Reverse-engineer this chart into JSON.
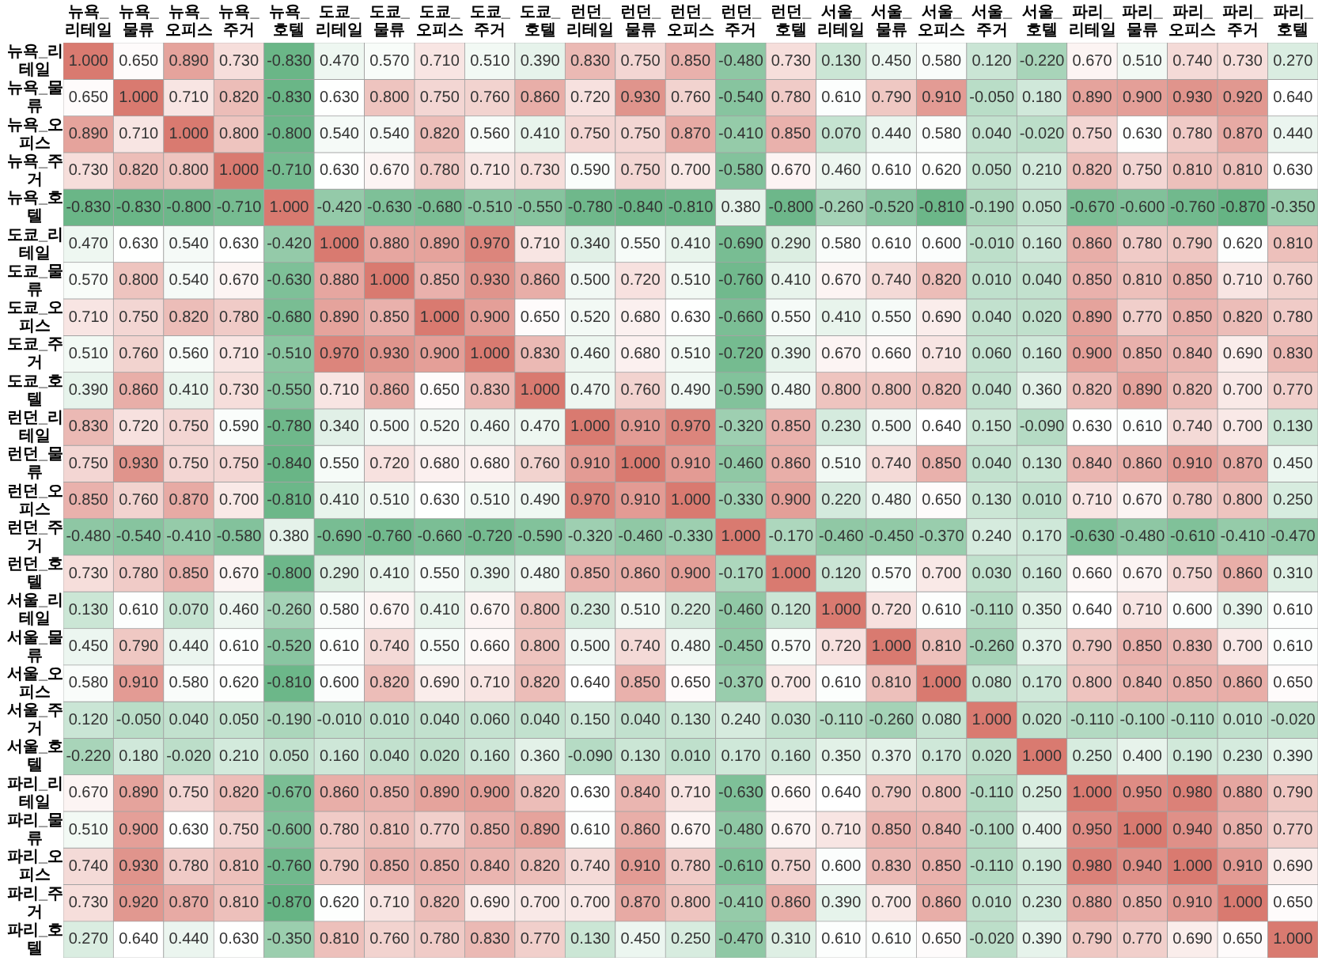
{
  "chart_data": {
    "type": "heatmap",
    "categories": [
      "뉴욕_리테일",
      "뉴욕_물류",
      "뉴욕_오피스",
      "뉴욕_주거",
      "뉴욕_호텔",
      "도쿄_리테일",
      "도쿄_물류",
      "도쿄_오피스",
      "도쿄_주거",
      "도쿄_호텔",
      "런던_리테일",
      "런던_물류",
      "런던_오피스",
      "런던_주거",
      "런던_호텔",
      "서울_리테일",
      "서울_물류",
      "서울_오피스",
      "서울_주거",
      "서울_호텔",
      "파리_리테일",
      "파리_물류",
      "파리_오피스",
      "파리_주거",
      "파리_호텔"
    ],
    "y_categories": [
      "뉴욕_리테일",
      "뉴욕_물류",
      "뉴욕_오피스",
      "뉴욕_주거",
      "뉴욕_호텔",
      "도쿄_리테일",
      "도쿄_물류",
      "도쿄_오피스",
      "도쿄_주거",
      "도쿄_호텔",
      "런던_리테일",
      "런던_물류",
      "런던_오피스",
      "런던_주거",
      "런던_호텔",
      "서울_리테일",
      "서울_물류",
      "서울_오피스",
      "서울_주거",
      "서울_호텔",
      "파리_리테일",
      "파리_물류",
      "파리_오피스",
      "파리_주거",
      "파리_호텔"
    ],
    "cells": [
      [
        1,
        0.65,
        0.89,
        0.73,
        -0.83,
        0.47,
        0.57,
        0.71,
        0.51,
        0.39,
        0.83,
        0.75,
        0.85,
        -0.48,
        0.73,
        0.13,
        0.45,
        0.58,
        0.12,
        -0.22,
        0.67,
        0.51,
        0.74,
        0.73,
        0.27
      ],
      [
        0.65,
        1,
        0.71,
        0.82,
        -0.83,
        0.63,
        0.8,
        0.75,
        0.76,
        0.86,
        0.72,
        0.93,
        0.76,
        -0.54,
        0.78,
        0.61,
        0.79,
        0.91,
        -0.05,
        0.18,
        0.89,
        0.9,
        0.93,
        0.92,
        0.64
      ],
      [
        0.89,
        0.71,
        1,
        0.8,
        -0.8,
        0.54,
        0.54,
        0.82,
        0.56,
        0.41,
        0.75,
        0.75,
        0.87,
        -0.41,
        0.85,
        0.07,
        0.44,
        0.58,
        0.04,
        -0.02,
        0.75,
        0.63,
        0.78,
        0.87,
        0.44
      ],
      [
        0.73,
        0.82,
        0.8,
        1,
        -0.71,
        0.63,
        0.67,
        0.78,
        0.71,
        0.73,
        0.59,
        0.75,
        0.7,
        -0.58,
        0.67,
        0.46,
        0.61,
        0.62,
        0.05,
        0.21,
        0.82,
        0.75,
        0.81,
        0.81,
        0.63
      ],
      [
        -0.83,
        -0.83,
        -0.8,
        -0.71,
        1,
        -0.42,
        -0.63,
        -0.68,
        -0.51,
        -0.55,
        -0.78,
        -0.84,
        -0.81,
        0.38,
        -0.8,
        -0.26,
        -0.52,
        -0.81,
        -0.19,
        0.05,
        -0.67,
        -0.6,
        -0.76,
        -0.87,
        -0.35
      ],
      [
        0.47,
        0.63,
        0.54,
        0.63,
        -0.42,
        1,
        0.88,
        0.89,
        0.97,
        0.71,
        0.34,
        0.55,
        0.41,
        -0.69,
        0.29,
        0.58,
        0.61,
        0.6,
        -0.01,
        0.16,
        0.86,
        0.78,
        0.79,
        0.62,
        0.81
      ],
      [
        0.57,
        0.8,
        0.54,
        0.67,
        -0.63,
        0.88,
        1,
        0.85,
        0.93,
        0.86,
        0.5,
        0.72,
        0.51,
        -0.76,
        0.41,
        0.67,
        0.74,
        0.82,
        0.01,
        0.04,
        0.85,
        0.81,
        0.85,
        0.71,
        0.76
      ],
      [
        0.71,
        0.75,
        0.82,
        0.78,
        -0.68,
        0.89,
        0.85,
        1,
        0.9,
        0.65,
        0.52,
        0.68,
        0.63,
        -0.66,
        0.55,
        0.41,
        0.55,
        0.69,
        0.04,
        0.02,
        0.89,
        0.77,
        0.85,
        0.82,
        0.78
      ],
      [
        0.51,
        0.76,
        0.56,
        0.71,
        -0.51,
        0.97,
        0.93,
        0.9,
        1,
        0.83,
        0.46,
        0.68,
        0.51,
        -0.72,
        0.39,
        0.67,
        0.66,
        0.71,
        0.06,
        0.16,
        0.9,
        0.85,
        0.84,
        0.69,
        0.83
      ],
      [
        0.39,
        0.86,
        0.41,
        0.73,
        -0.55,
        0.71,
        0.86,
        0.65,
        0.83,
        1,
        0.47,
        0.76,
        0.49,
        -0.59,
        0.48,
        0.8,
        0.8,
        0.82,
        0.04,
        0.36,
        0.82,
        0.89,
        0.82,
        0.7,
        0.77
      ],
      [
        0.83,
        0.72,
        0.75,
        0.59,
        -0.78,
        0.34,
        0.5,
        0.52,
        0.46,
        0.47,
        1,
        0.91,
        0.97,
        -0.32,
        0.85,
        0.23,
        0.5,
        0.64,
        0.15,
        -0.09,
        0.63,
        0.61,
        0.74,
        0.7,
        0.13
      ],
      [
        0.75,
        0.93,
        0.75,
        0.75,
        -0.84,
        0.55,
        0.72,
        0.68,
        0.68,
        0.76,
        0.91,
        1,
        0.91,
        -0.46,
        0.86,
        0.51,
        0.74,
        0.85,
        0.04,
        0.13,
        0.84,
        0.86,
        0.91,
        0.87,
        0.45
      ],
      [
        0.85,
        0.76,
        0.87,
        0.7,
        -0.81,
        0.41,
        0.51,
        0.63,
        0.51,
        0.49,
        0.97,
        0.91,
        1,
        -0.33,
        0.9,
        0.22,
        0.48,
        0.65,
        0.13,
        0.01,
        0.71,
        0.67,
        0.78,
        0.8,
        0.25
      ],
      [
        -0.48,
        -0.54,
        -0.41,
        -0.58,
        0.38,
        -0.69,
        -0.76,
        -0.66,
        -0.72,
        -0.59,
        -0.32,
        -0.46,
        -0.33,
        1,
        -0.17,
        -0.46,
        -0.45,
        -0.37,
        0.24,
        0.17,
        -0.63,
        -0.48,
        -0.61,
        -0.41,
        -0.47
      ],
      [
        0.73,
        0.78,
        0.85,
        0.67,
        -0.8,
        0.29,
        0.41,
        0.55,
        0.39,
        0.48,
        0.85,
        0.86,
        0.9,
        -0.17,
        1,
        0.12,
        0.57,
        0.7,
        0.03,
        0.16,
        0.66,
        0.67,
        0.75,
        0.86,
        0.31
      ],
      [
        0.13,
        0.61,
        0.07,
        0.46,
        -0.26,
        0.58,
        0.67,
        0.41,
        0.67,
        0.8,
        0.23,
        0.51,
        0.22,
        -0.46,
        0.12,
        1,
        0.72,
        0.61,
        -0.11,
        0.35,
        0.64,
        0.71,
        0.6,
        0.39,
        0.61
      ],
      [
        0.45,
        0.79,
        0.44,
        0.61,
        -0.52,
        0.61,
        0.74,
        0.55,
        0.66,
        0.8,
        0.5,
        0.74,
        0.48,
        -0.45,
        0.57,
        0.72,
        1,
        0.81,
        -0.26,
        0.37,
        0.79,
        0.85,
        0.83,
        0.7,
        0.61
      ],
      [
        0.58,
        0.91,
        0.58,
        0.62,
        -0.81,
        0.6,
        0.82,
        0.69,
        0.71,
        0.82,
        0.64,
        0.85,
        0.65,
        -0.37,
        0.7,
        0.61,
        0.81,
        1,
        0.08,
        0.17,
        0.8,
        0.84,
        0.85,
        0.86,
        0.65
      ],
      [
        0.12,
        -0.05,
        0.04,
        0.05,
        -0.19,
        -0.01,
        0.01,
        0.04,
        0.06,
        0.04,
        0.15,
        0.04,
        0.13,
        0.24,
        0.03,
        -0.11,
        -0.26,
        0.08,
        1,
        0.02,
        -0.11,
        -0.1,
        -0.11,
        0.01,
        -0.02
      ],
      [
        -0.22,
        0.18,
        -0.02,
        0.21,
        0.05,
        0.16,
        0.04,
        0.02,
        0.16,
        0.36,
        -0.09,
        0.13,
        0.01,
        0.17,
        0.16,
        0.35,
        0.37,
        0.17,
        0.02,
        1,
        0.25,
        0.4,
        0.19,
        0.23,
        0.39
      ],
      [
        0.67,
        0.89,
        0.75,
        0.82,
        -0.67,
        0.86,
        0.85,
        0.89,
        0.9,
        0.82,
        0.63,
        0.84,
        0.71,
        -0.63,
        0.66,
        0.64,
        0.79,
        0.8,
        -0.11,
        0.25,
        1,
        0.95,
        0.98,
        0.88,
        0.79
      ],
      [
        0.51,
        0.9,
        0.63,
        0.75,
        -0.6,
        0.78,
        0.81,
        0.77,
        0.85,
        0.89,
        0.61,
        0.86,
        0.67,
        -0.48,
        0.67,
        0.71,
        0.85,
        0.84,
        -0.1,
        0.4,
        0.95,
        1,
        0.94,
        0.85,
        0.77
      ],
      [
        0.74,
        0.93,
        0.78,
        0.81,
        -0.76,
        0.79,
        0.85,
        0.85,
        0.84,
        0.82,
        0.74,
        0.91,
        0.78,
        -0.61,
        0.75,
        0.6,
        0.83,
        0.85,
        -0.11,
        0.19,
        0.98,
        0.94,
        1,
        0.91,
        0.69
      ],
      [
        0.73,
        0.92,
        0.87,
        0.81,
        -0.87,
        0.62,
        0.71,
        0.82,
        0.69,
        0.7,
        0.7,
        0.87,
        0.8,
        -0.41,
        0.86,
        0.39,
        0.7,
        0.86,
        0.01,
        0.23,
        0.88,
        0.85,
        0.91,
        1,
        0.65
      ],
      [
        0.27,
        0.64,
        0.44,
        0.63,
        -0.35,
        0.81,
        0.76,
        0.78,
        0.83,
        0.77,
        0.13,
        0.45,
        0.25,
        -0.47,
        0.31,
        0.61,
        0.61,
        0.65,
        -0.02,
        0.39,
        0.79,
        0.77,
        0.69,
        0.65,
        1
      ]
    ],
    "cell_labels": [
      [
        "1.000",
        "0.650",
        "0.890",
        "0.730",
        "-0.830",
        "0.470",
        "0.570",
        "0.710",
        "0.510",
        "0.390",
        "0.830",
        "0.750",
        "0.850",
        "-0.480",
        "0.730",
        "0.130",
        "0.450",
        "0.580",
        "0.120",
        "-0.220",
        "0.670",
        "0.510",
        "0.740",
        "0.730",
        "0.270"
      ],
      [
        "0.650",
        "1.000",
        "0.710",
        "0.820",
        "-0.830",
        "0.630",
        "0.800",
        "0.750",
        "0.760",
        "0.860",
        "0.720",
        "0.930",
        "0.760",
        "-0.540",
        "0.780",
        "0.610",
        "0.790",
        "0.910",
        "-0.050",
        "0.180",
        "0.890",
        "0.900",
        "0.930",
        "0.920",
        "0.640"
      ],
      [
        "0.890",
        "0.710",
        "1.000",
        "0.800",
        "-0.800",
        "0.540",
        "0.540",
        "0.820",
        "0.560",
        "0.410",
        "0.750",
        "0.750",
        "0.870",
        "-0.410",
        "0.850",
        "0.070",
        "0.440",
        "0.580",
        "0.040",
        "-0.020",
        "0.750",
        "0.630",
        "0.780",
        "0.870",
        "0.440"
      ],
      [
        "0.730",
        "0.820",
        "0.800",
        "1.000",
        "-0.710",
        "0.630",
        "0.670",
        "0.780",
        "0.710",
        "0.730",
        "0.590",
        "0.750",
        "0.700",
        "-0.580",
        "0.670",
        "0.460",
        "0.610",
        "0.620",
        "0.050",
        "0.210",
        "0.820",
        "0.750",
        "0.810",
        "0.810",
        "0.630"
      ],
      [
        "-0.830",
        "-0.830",
        "-0.800",
        "-0.710",
        "1.000",
        "-0.420",
        "-0.630",
        "-0.680",
        "-0.510",
        "-0.550",
        "-0.780",
        "-0.840",
        "-0.810",
        "0.380",
        "-0.800",
        "-0.260",
        "-0.520",
        "-0.810",
        "-0.190",
        "0.050",
        "-0.670",
        "-0.600",
        "-0.760",
        "-0.870",
        "-0.350"
      ],
      [
        "0.470",
        "0.630",
        "0.540",
        "0.630",
        "-0.420",
        "1.000",
        "0.880",
        "0.890",
        "0.970",
        "0.710",
        "0.340",
        "0.550",
        "0.410",
        "-0.690",
        "0.290",
        "0.580",
        "0.610",
        "0.600",
        "-0.010",
        "0.160",
        "0.860",
        "0.780",
        "0.790",
        "0.620",
        "0.810"
      ],
      [
        "0.570",
        "0.800",
        "0.540",
        "0.670",
        "-0.630",
        "0.880",
        "1.000",
        "0.850",
        "0.930",
        "0.860",
        "0.500",
        "0.720",
        "0.510",
        "-0.760",
        "0.410",
        "0.670",
        "0.740",
        "0.820",
        "0.010",
        "0.040",
        "0.850",
        "0.810",
        "0.850",
        "0.710",
        "0.760"
      ],
      [
        "0.710",
        "0.750",
        "0.820",
        "0.780",
        "-0.680",
        "0.890",
        "0.850",
        "1.000",
        "0.900",
        "0.650",
        "0.520",
        "0.680",
        "0.630",
        "-0.660",
        "0.550",
        "0.410",
        "0.550",
        "0.690",
        "0.040",
        "0.020",
        "0.890",
        "0.770",
        "0.850",
        "0.820",
        "0.780"
      ],
      [
        "0.510",
        "0.760",
        "0.560",
        "0.710",
        "-0.510",
        "0.970",
        "0.930",
        "0.900",
        "1.000",
        "0.830",
        "0.460",
        "0.680",
        "0.510",
        "-0.720",
        "0.390",
        "0.670",
        "0.660",
        "0.710",
        "0.060",
        "0.160",
        "0.900",
        "0.850",
        "0.840",
        "0.690",
        "0.830"
      ],
      [
        "0.390",
        "0.860",
        "0.410",
        "0.730",
        "-0.550",
        "0.710",
        "0.860",
        "0.650",
        "0.830",
        "1.000",
        "0.470",
        "0.760",
        "0.490",
        "-0.590",
        "0.480",
        "0.800",
        "0.800",
        "0.820",
        "0.040",
        "0.360",
        "0.820",
        "0.890",
        "0.820",
        "0.700",
        "0.770"
      ],
      [
        "0.830",
        "0.720",
        "0.750",
        "0.590",
        "-0.780",
        "0.340",
        "0.500",
        "0.520",
        "0.460",
        "0.470",
        "1.000",
        "0.910",
        "0.970",
        "-0.320",
        "0.850",
        "0.230",
        "0.500",
        "0.640",
        "0.150",
        "-0.090",
        "0.630",
        "0.610",
        "0.740",
        "0.700",
        "0.130"
      ],
      [
        "0.750",
        "0.930",
        "0.750",
        "0.750",
        "-0.840",
        "0.550",
        "0.720",
        "0.680",
        "0.680",
        "0.760",
        "0.910",
        "1.000",
        "0.910",
        "-0.460",
        "0.860",
        "0.510",
        "0.740",
        "0.850",
        "0.040",
        "0.130",
        "0.840",
        "0.860",
        "0.910",
        "0.870",
        "0.450"
      ],
      [
        "0.850",
        "0.760",
        "0.870",
        "0.700",
        "-0.810",
        "0.410",
        "0.510",
        "0.630",
        "0.510",
        "0.490",
        "0.970",
        "0.910",
        "1.000",
        "-0.330",
        "0.900",
        "0.220",
        "0.480",
        "0.650",
        "0.130",
        "0.010",
        "0.710",
        "0.670",
        "0.780",
        "0.800",
        "0.250"
      ],
      [
        "-0.480",
        "-0.540",
        "-0.410",
        "-0.580",
        "0.380",
        "-0.690",
        "-0.760",
        "-0.660",
        "-0.720",
        "-0.590",
        "-0.320",
        "-0.460",
        "-0.330",
        "1.000",
        "-0.170",
        "-0.460",
        "-0.450",
        "-0.370",
        "0.240",
        "0.170",
        "-0.630",
        "-0.480",
        "-0.610",
        "-0.410",
        "-0.470"
      ],
      [
        "0.730",
        "0.780",
        "0.850",
        "0.670",
        "-0.800",
        "0.290",
        "0.410",
        "0.550",
        "0.390",
        "0.480",
        "0.850",
        "0.860",
        "0.900",
        "-0.170",
        "1.000",
        "0.120",
        "0.570",
        "0.700",
        "0.030",
        "0.160",
        "0.660",
        "0.670",
        "0.750",
        "0.860",
        "0.310"
      ],
      [
        "0.130",
        "0.610",
        "0.070",
        "0.460",
        "-0.260",
        "0.580",
        "0.670",
        "0.410",
        "0.670",
        "0.800",
        "0.230",
        "0.510",
        "0.220",
        "-0.460",
        "0.120",
        "1.000",
        "0.720",
        "0.610",
        "-0.110",
        "0.350",
        "0.640",
        "0.710",
        "0.600",
        "0.390",
        "0.610"
      ],
      [
        "0.450",
        "0.790",
        "0.440",
        "0.610",
        "-0.520",
        "0.610",
        "0.740",
        "0.550",
        "0.660",
        "0.800",
        "0.500",
        "0.740",
        "0.480",
        "-0.450",
        "0.570",
        "0.720",
        "1.000",
        "0.810",
        "-0.260",
        "0.370",
        "0.790",
        "0.850",
        "0.830",
        "0.700",
        "0.610"
      ],
      [
        "0.580",
        "0.910",
        "0.580",
        "0.620",
        "-0.810",
        "0.600",
        "0.820",
        "0.690",
        "0.710",
        "0.820",
        "0.640",
        "0.850",
        "0.650",
        "-0.370",
        "0.700",
        "0.610",
        "0.810",
        "1.000",
        "0.080",
        "0.170",
        "0.800",
        "0.840",
        "0.850",
        "0.860",
        "0.650"
      ],
      [
        "0.120",
        "-0.050",
        "0.040",
        "0.050",
        "-0.190",
        "-0.010",
        "0.010",
        "0.040",
        "0.060",
        "0.040",
        "0.150",
        "0.040",
        "0.130",
        "0.240",
        "0.030",
        "-0.110",
        "-0.260",
        "0.080",
        "1.000",
        "0.020",
        "-0.110",
        "-0.100",
        "-0.110",
        "0.010",
        "-0.020"
      ],
      [
        "-0.220",
        "0.180",
        "-0.020",
        "0.210",
        "0.050",
        "0.160",
        "0.040",
        "0.020",
        "0.160",
        "0.360",
        "-0.090",
        "0.130",
        "0.010",
        "0.170",
        "0.160",
        "0.350",
        "0.370",
        "0.170",
        "0.020",
        "1.000",
        "0.250",
        "0.400",
        "0.190",
        "0.230",
        "0.390"
      ],
      [
        "0.670",
        "0.890",
        "0.750",
        "0.820",
        "-0.670",
        "0.860",
        "0.850",
        "0.890",
        "0.900",
        "0.820",
        "0.630",
        "0.840",
        "0.710",
        "-0.630",
        "0.660",
        "0.640",
        "0.790",
        "0.800",
        "-0.110",
        "0.250",
        "1.000",
        "0.950",
        "0.980",
        "0.880",
        "0.790"
      ],
      [
        "0.510",
        "0.900",
        "0.630",
        "0.750",
        "-0.600",
        "0.780",
        "0.810",
        "0.770",
        "0.850",
        "0.890",
        "0.610",
        "0.860",
        "0.670",
        "-0.480",
        "0.670",
        "0.710",
        "0.850",
        "0.840",
        "-0.100",
        "0.400",
        "0.950",
        "1.000",
        "0.940",
        "0.850",
        "0.770"
      ],
      [
        "0.740",
        "0.930",
        "0.780",
        "0.810",
        "-0.760",
        "0.790",
        "0.850",
        "0.850",
        "0.840",
        "0.820",
        "0.740",
        "0.910",
        "0.780",
        "-0.610",
        "0.750",
        "0.600",
        "0.830",
        "0.850",
        "-0.110",
        "0.190",
        "0.980",
        "0.940",
        "1.000",
        "0.910",
        "0.690"
      ],
      [
        "0.730",
        "0.920",
        "0.870",
        "0.810",
        "-0.870",
        "0.620",
        "0.710",
        "0.820",
        "0.690",
        "0.700",
        "0.700",
        "0.870",
        "0.800",
        "-0.410",
        "0.860",
        "0.390",
        "0.700",
        "0.860",
        "0.010",
        "0.230",
        "0.880",
        "0.850",
        "0.910",
        "1.000",
        "0.650"
      ],
      [
        "0.270",
        "0.640",
        "0.440",
        "0.630",
        "-0.350",
        "0.810",
        "0.760",
        "0.780",
        "0.830",
        "0.770",
        "0.130",
        "0.450",
        "0.250",
        "-0.470",
        "0.310",
        "0.610",
        "0.610",
        "0.650",
        "-0.020",
        "0.390",
        "0.790",
        "0.770",
        "0.690",
        "0.650",
        "1.000"
      ]
    ]
  }
}
